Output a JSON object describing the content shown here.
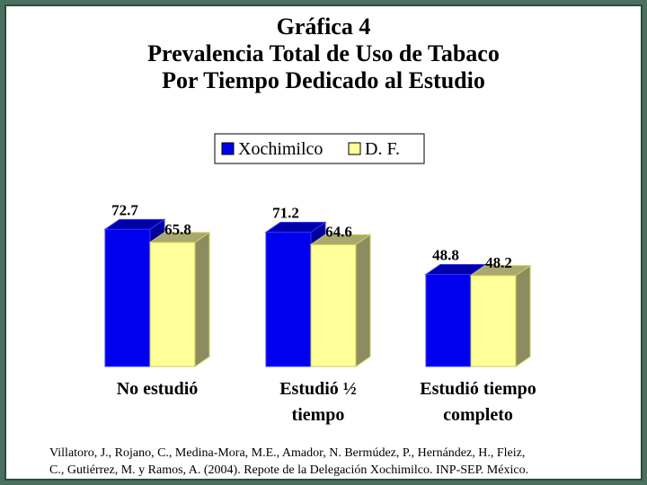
{
  "title_lines": [
    "Gráfica 4",
    "Prevalencia Total de Uso de Tabaco",
    "Por Tiempo Dedicado al Estudio"
  ],
  "source_lines": [
    "Villatoro, J., Rojano, C., Medina-Mora, M.E., Amador, N. Bermúdez, P., Hernández, H., Fleiz,",
    "C., Gutiérrez, M. y Ramos, A. (2004). Repote de la Delegación Xochimilco. INP-SEP. México."
  ],
  "chart_data": {
    "type": "bar",
    "title": "Gráfica 4 Prevalencia Total de Uso de Tabaco Por Tiempo Dedicado al Estudio",
    "categories": [
      [
        "No estudió"
      ],
      [
        "Estudió ½",
        "tiempo"
      ],
      [
        "Estudió tiempo",
        "completo"
      ]
    ],
    "series": [
      {
        "name": "Xochimilco",
        "values": [
          72.7,
          71.2,
          48.8
        ],
        "labels": [
          "72.7",
          "71.2",
          "48.8"
        ],
        "color": "#0000ee"
      },
      {
        "name": "D. F.",
        "values": [
          65.8,
          64.6,
          48.2
        ],
        "labels": [
          "65.8",
          "64.6",
          "48.2"
        ],
        "color": "#ffff99"
      }
    ],
    "ylim": [
      0,
      100
    ],
    "legend": "top-center",
    "grid": false
  }
}
